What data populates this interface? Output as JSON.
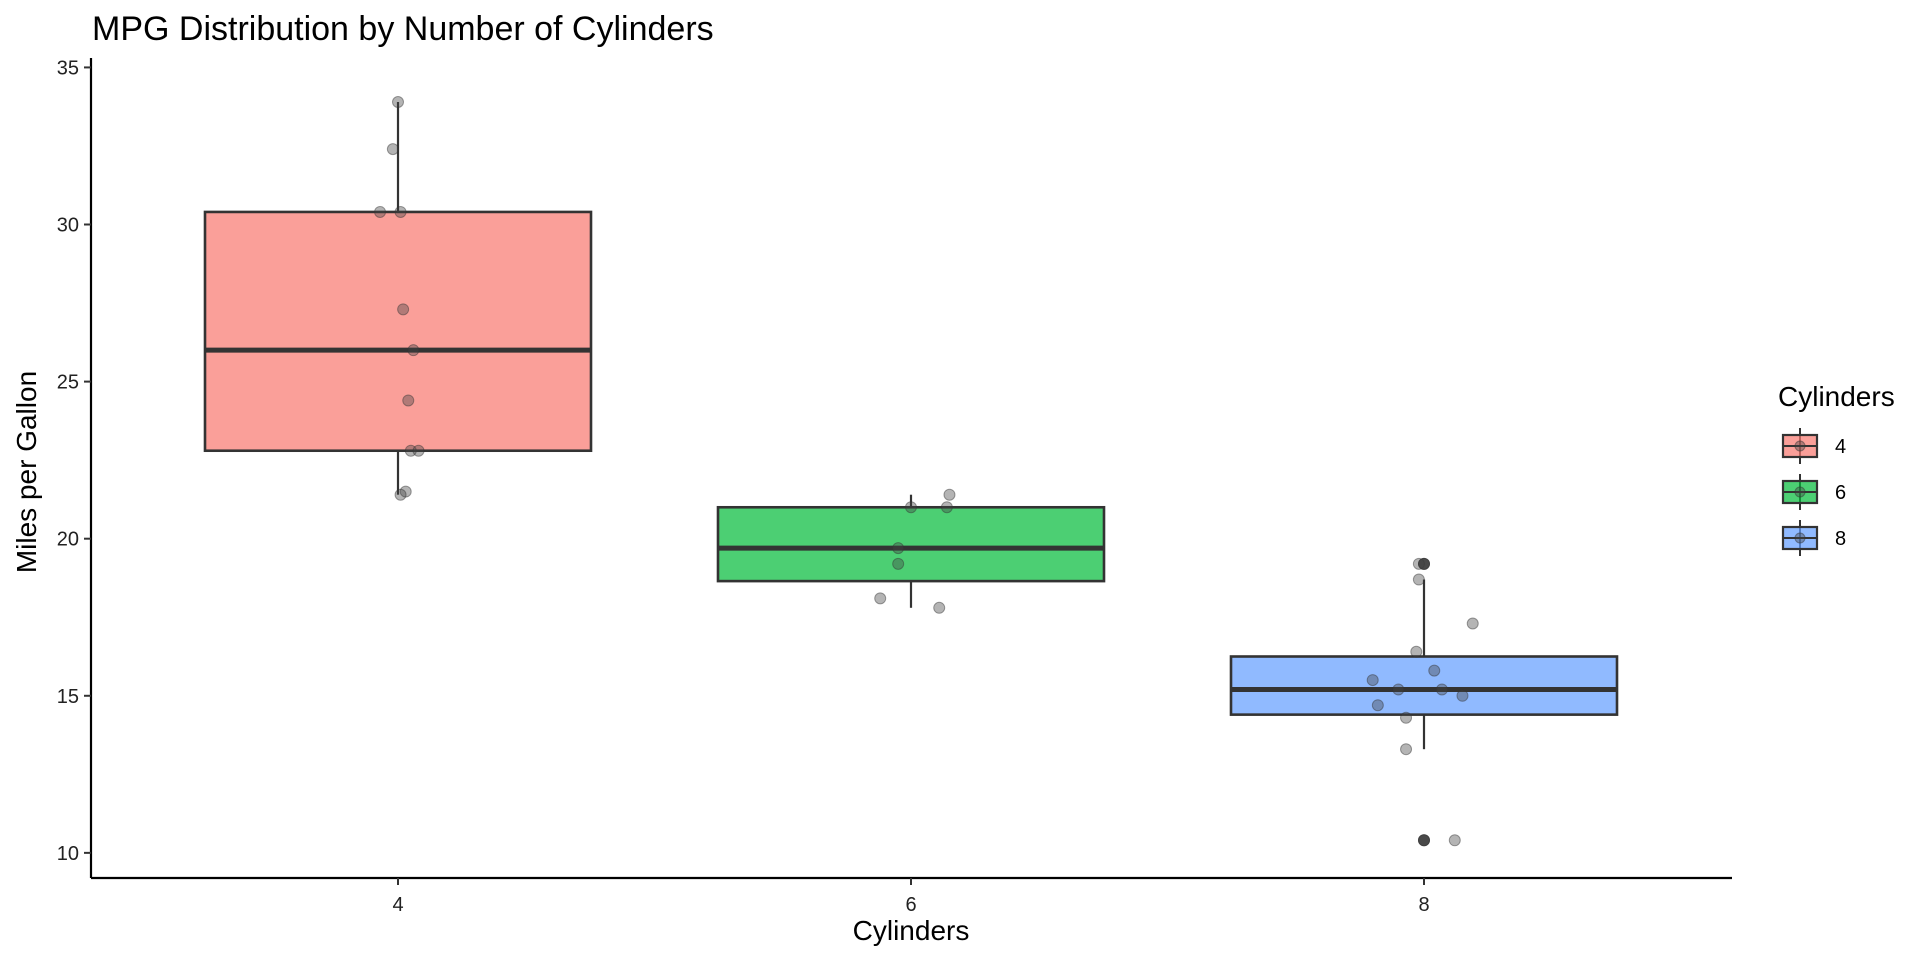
{
  "chart_data": {
    "type": "boxplot",
    "title": "MPG Distribution by Number of Cylinders",
    "xlabel": "Cylinders",
    "ylabel": "Miles per Gallon",
    "categories": [
      "4",
      "6",
      "8"
    ],
    "ylim": [
      9.2,
      35.3
    ],
    "yticks": [
      10,
      15,
      20,
      25,
      30,
      35
    ],
    "grid": false,
    "legend": {
      "title": "Cylinders",
      "placement": "right",
      "entries": [
        "4",
        "6",
        "8"
      ]
    },
    "colors": {
      "4": "#F8766D",
      "6": "#00BA38",
      "8": "#619CFF"
    },
    "series": [
      {
        "name": "4",
        "box": {
          "whisker_low": 21.4,
          "q1": 22.8,
          "median": 26.0,
          "q3": 30.4,
          "whisker_high": 33.9
        },
        "outliers": [],
        "points": [
          {
            "x": 4.0,
            "y": 33.9
          },
          {
            "x": 3.98,
            "y": 32.4
          },
          {
            "x": 3.93,
            "y": 30.4
          },
          {
            "x": 4.01,
            "y": 30.4
          },
          {
            "x": 4.02,
            "y": 27.3
          },
          {
            "x": 4.06,
            "y": 26.0
          },
          {
            "x": 4.04,
            "y": 24.4
          },
          {
            "x": 4.05,
            "y": 22.8
          },
          {
            "x": 4.08,
            "y": 22.8
          },
          {
            "x": 4.03,
            "y": 21.5
          },
          {
            "x": 4.01,
            "y": 21.4
          }
        ]
      },
      {
        "name": "6",
        "box": {
          "whisker_low": 17.8,
          "q1": 18.65,
          "median": 19.7,
          "q3": 21.0,
          "whisker_high": 21.4
        },
        "outliers": [],
        "points": [
          {
            "x": 6.15,
            "y": 21.4
          },
          {
            "x": 6.0,
            "y": 21.0
          },
          {
            "x": 6.14,
            "y": 21.0
          },
          {
            "x": 5.95,
            "y": 19.7
          },
          {
            "x": 5.95,
            "y": 19.2
          },
          {
            "x": 5.88,
            "y": 18.1
          },
          {
            "x": 6.11,
            "y": 17.8
          }
        ]
      },
      {
        "name": "8",
        "box": {
          "whisker_low": 13.3,
          "q1": 14.4,
          "median": 15.2,
          "q3": 16.25,
          "whisker_high": 18.7
        },
        "outliers": [
          19.2,
          10.4
        ],
        "points": [
          {
            "x": 7.98,
            "y": 19.2
          },
          {
            "x": 8.0,
            "y": 19.2
          },
          {
            "x": 7.98,
            "y": 18.7
          },
          {
            "x": 8.19,
            "y": 17.3
          },
          {
            "x": 7.97,
            "y": 16.4
          },
          {
            "x": 8.04,
            "y": 15.8
          },
          {
            "x": 7.8,
            "y": 15.5
          },
          {
            "x": 7.9,
            "y": 15.2
          },
          {
            "x": 8.07,
            "y": 15.2
          },
          {
            "x": 8.15,
            "y": 15.0
          },
          {
            "x": 7.82,
            "y": 14.7
          },
          {
            "x": 7.93,
            "y": 14.3
          },
          {
            "x": 7.93,
            "y": 13.3
          },
          {
            "x": 8.0,
            "y": 10.4
          },
          {
            "x": 8.12,
            "y": 10.4
          }
        ]
      }
    ]
  }
}
